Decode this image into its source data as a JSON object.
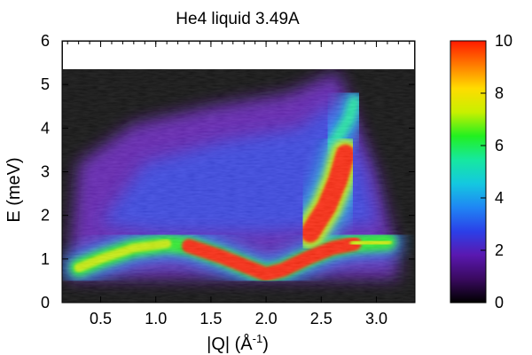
{
  "chart_data": {
    "type": "heatmap",
    "title": "He4 liquid 3.49A",
    "xlabel": "|Q| (Å",
    "xlabel_sup": "-1",
    "xlabel_suffix": ")",
    "ylabel": "E (meV)",
    "xlim": [
      0.15,
      3.35
    ],
    "ylim": [
      0,
      6
    ],
    "x_ticks": [
      {
        "value": 0.5,
        "label": "0.5"
      },
      {
        "value": 1.0,
        "label": "1.0"
      },
      {
        "value": 1.5,
        "label": "1.5"
      },
      {
        "value": 2.0,
        "label": "2.0"
      },
      {
        "value": 2.5,
        "label": "2.5"
      },
      {
        "value": 3.0,
        "label": "3.0"
      }
    ],
    "y_ticks": [
      {
        "value": 0,
        "label": "0"
      },
      {
        "value": 1,
        "label": "1"
      },
      {
        "value": 2,
        "label": "2"
      },
      {
        "value": 3,
        "label": "3"
      },
      {
        "value": 4,
        "label": "4"
      },
      {
        "value": 5,
        "label": "5"
      },
      {
        "value": 6,
        "label": "6"
      }
    ],
    "colorbar": {
      "min": 0,
      "max": 10,
      "ticks": [
        {
          "value": 0,
          "label": "0"
        },
        {
          "value": 2,
          "label": "2"
        },
        {
          "value": 4,
          "label": "4"
        },
        {
          "value": 6,
          "label": "6"
        },
        {
          "value": 8,
          "label": "8"
        },
        {
          "value": 10,
          "label": "10"
        }
      ],
      "stops": [
        "#000000",
        "#3a0a60",
        "#5a18b0",
        "#2b40e8",
        "#1f86f4",
        "#14c8e0",
        "#16e8a0",
        "#22f020",
        "#c8f000",
        "#ffdc00",
        "#ff7a00",
        "#ff1a00"
      ]
    },
    "no_data_above_E": 5.35,
    "grid": false,
    "features": {
      "phonon_roton_ridge": {
        "intensity": 10,
        "points": [
          [
            0.3,
            0.8
          ],
          [
            0.5,
            1.0
          ],
          [
            0.8,
            1.25
          ],
          [
            1.1,
            1.35
          ],
          [
            1.3,
            1.3
          ],
          [
            1.6,
            1.05
          ],
          [
            1.85,
            0.8
          ],
          [
            2.0,
            0.65
          ],
          [
            2.15,
            0.75
          ],
          [
            2.4,
            1.05
          ],
          [
            2.6,
            1.25
          ],
          [
            2.8,
            1.35
          ],
          [
            3.1,
            1.4
          ]
        ]
      },
      "multiphonon_column": {
        "intensity": 10,
        "points": [
          [
            2.4,
            1.6
          ],
          [
            2.55,
            2.2
          ],
          [
            2.65,
            2.8
          ],
          [
            2.72,
            3.4
          ]
        ]
      },
      "upper_branch": {
        "intensity": 5,
        "points": [
          [
            2.6,
            3.6
          ],
          [
            2.75,
            4.2
          ],
          [
            2.8,
            4.6
          ]
        ]
      },
      "background_continuum": {
        "intensity": 2.5,
        "q_range": [
          0.2,
          3.2
        ],
        "e_range": [
          1.5,
          4.5
        ]
      }
    }
  }
}
